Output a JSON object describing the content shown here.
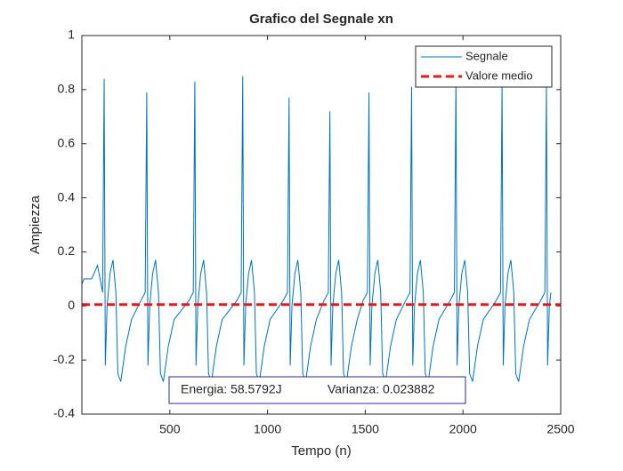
{
  "chart_data": {
    "type": "line",
    "title": "Grafico del Segnale xn",
    "xlabel": "Tempo (n)",
    "ylabel": "Ampiezza",
    "xlim": [
      50,
      2500
    ],
    "xticks": [
      500,
      1000,
      1500,
      2000,
      2500
    ],
    "ylim": [
      -0.4,
      1
    ],
    "yticks": [
      -0.4,
      -0.2,
      0,
      0.2,
      0.4,
      0.6,
      0.8,
      1
    ],
    "legend": "upper right",
    "annotations": [
      "Energia: 58.5792J",
      "Varianza: 0.023882"
    ],
    "series": [
      {
        "name": "Segnale",
        "color": "#0072bd",
        "x": [
          50,
          60,
          100,
          130,
          156,
          164,
          170,
          179,
          194,
          209,
          224,
          234,
          249,
          274,
          304,
          352,
          374,
          382,
          388,
          397,
          412,
          427,
          442,
          452,
          467,
          492,
          522,
          598,
          620,
          628,
          634,
          643,
          658,
          673,
          688,
          698,
          713,
          738,
          768,
          843,
          865,
          873,
          879,
          888,
          903,
          918,
          933,
          943,
          958,
          983,
          1013,
          1080,
          1102,
          1110,
          1116,
          1125,
          1140,
          1155,
          1170,
          1180,
          1195,
          1220,
          1250,
          1289,
          1311,
          1319,
          1325,
          1334,
          1349,
          1364,
          1379,
          1389,
          1404,
          1429,
          1459,
          1489,
          1511,
          1519,
          1525,
          1534,
          1549,
          1564,
          1579,
          1589,
          1604,
          1629,
          1659,
          1707,
          1729,
          1737,
          1743,
          1752,
          1767,
          1782,
          1797,
          1807,
          1822,
          1847,
          1877,
          1934,
          1956,
          1964,
          1970,
          1979,
          1994,
          2009,
          2024,
          2034,
          2049,
          2074,
          2104,
          2170,
          2192,
          2200,
          2206,
          2215,
          2230,
          2245,
          2260,
          2270,
          2285,
          2310,
          2340,
          2397,
          2419,
          2427,
          2433,
          2442,
          2450
        ],
        "values": [
          0.08,
          0.1,
          0.1,
          0.15,
          0.05,
          0.84,
          -0.22,
          0,
          0.12,
          0.17,
          0.05,
          -0.25,
          -0.28,
          -0.15,
          -0.05,
          0.02,
          0.05,
          0.79,
          -0.22,
          0,
          0.12,
          0.17,
          0.05,
          -0.25,
          -0.28,
          -0.15,
          -0.05,
          0.02,
          0.05,
          0.83,
          -0.22,
          0,
          0.12,
          0.17,
          0.05,
          -0.25,
          -0.28,
          -0.15,
          -0.05,
          0.02,
          0.05,
          0.85,
          -0.22,
          0,
          0.12,
          0.17,
          0.05,
          -0.25,
          -0.28,
          -0.15,
          -0.05,
          0.02,
          0.05,
          0.77,
          -0.22,
          0,
          0.12,
          0.17,
          0.05,
          -0.25,
          -0.28,
          -0.15,
          -0.05,
          0.02,
          0.05,
          0.72,
          -0.22,
          0,
          0.12,
          0.17,
          0.05,
          -0.25,
          -0.28,
          -0.15,
          -0.05,
          0.02,
          0.05,
          0.79,
          -0.22,
          0,
          0.12,
          0.17,
          0.05,
          -0.25,
          -0.28,
          -0.15,
          -0.05,
          0.02,
          0.05,
          0.81,
          -0.22,
          0,
          0.12,
          0.17,
          0.05,
          -0.25,
          -0.28,
          -0.15,
          -0.05,
          0.02,
          0.05,
          0.84,
          -0.22,
          0,
          0.12,
          0.17,
          0.05,
          -0.25,
          -0.28,
          -0.15,
          -0.05,
          0.02,
          0.05,
          0.82,
          -0.22,
          0,
          0.12,
          0.17,
          0.05,
          -0.25,
          -0.28,
          -0.15,
          -0.05,
          0.02,
          0.05,
          0.81,
          -0.22,
          0,
          0.05
        ]
      },
      {
        "name": "Valore medio",
        "color": "#e41a1c",
        "dashed": true,
        "value": 0.005
      }
    ]
  }
}
